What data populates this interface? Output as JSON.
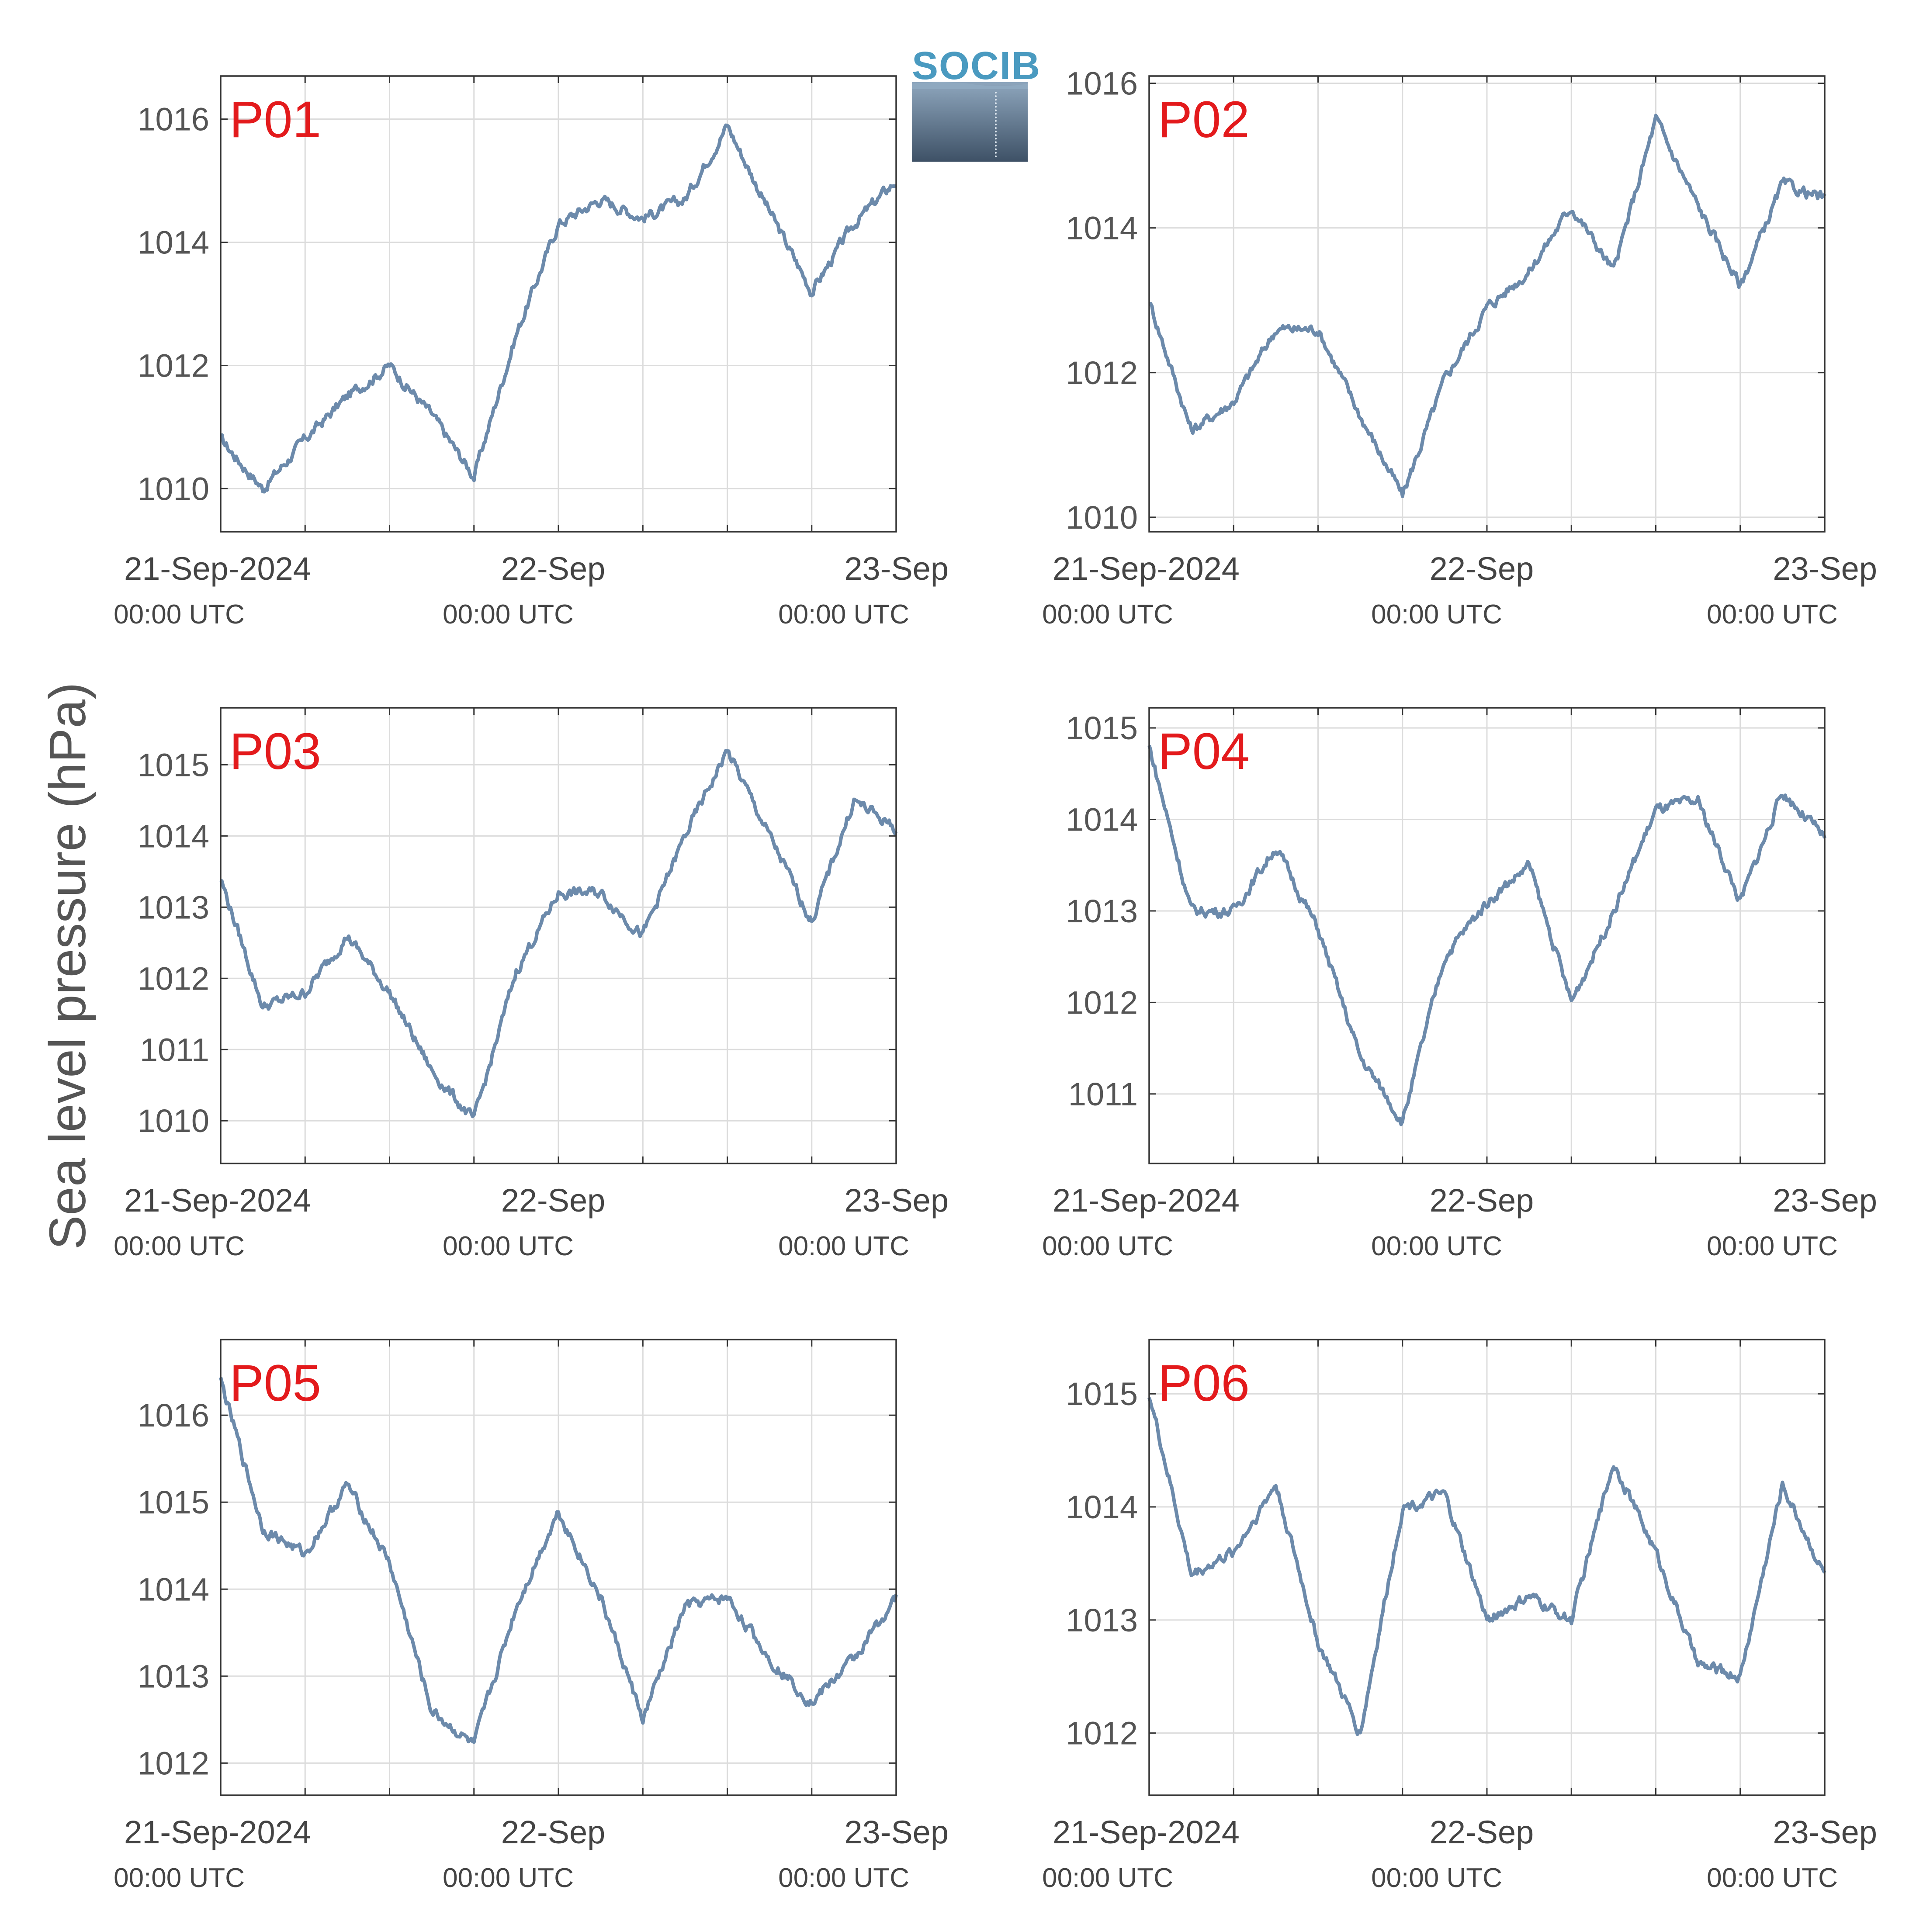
{
  "figure": {
    "ylabel": "Sea level pressure (hPa)",
    "logo_text": "SOCIB",
    "line_color": "#6c8aab",
    "label_color": "#e31a1c"
  },
  "chart_data": [
    {
      "type": "line",
      "panel": "P01",
      "x": [
        "21-Sep-2024 00:00",
        "21-Sep 03:00",
        "21-Sep 06:00",
        "21-Sep 09:00",
        "21-Sep 12:00",
        "21-Sep 15:00",
        "21-Sep 18:00",
        "21-Sep 21:00",
        "22-Sep 00:00",
        "22-Sep 03:00",
        "22-Sep 06:00",
        "22-Sep 09:00",
        "22-Sep 12:00",
        "22-Sep 15:00",
        "22-Sep 18:00",
        "22-Sep 21:00",
        "23-Sep 00:00"
      ],
      "y": [
        1010.8,
        1010.0,
        1010.8,
        1011.5,
        1012.0,
        1011.2,
        1010.2,
        1012.5,
        1014.3,
        1014.7,
        1014.4,
        1014.7,
        1015.9,
        1014.5,
        1013.2,
        1014.3,
        1015.0
      ],
      "ylim": [
        1009.3,
        1016.7
      ],
      "yticks": [
        1010,
        1012,
        1014,
        1016
      ],
      "xtick_labels": [
        "21-Sep-2024",
        "22-Sep",
        "23-Sep"
      ],
      "xtick_sublabels": [
        "00:00 UTC",
        "00:00 UTC",
        "00:00 UTC"
      ]
    },
    {
      "type": "line",
      "panel": "P02",
      "x": [
        "21-Sep-2024 00:00",
        "21-Sep 03:00",
        "21-Sep 06:00",
        "21-Sep 09:00",
        "21-Sep 12:00",
        "21-Sep 15:00",
        "21-Sep 18:00",
        "21-Sep 21:00",
        "22-Sep 00:00",
        "22-Sep 03:00",
        "22-Sep 06:00",
        "22-Sep 09:00",
        "22-Sep 12:00",
        "22-Sep 15:00",
        "22-Sep 18:00",
        "22-Sep 21:00",
        "23-Sep 00:00"
      ],
      "y": [
        1013.0,
        1011.2,
        1011.6,
        1012.6,
        1012.6,
        1011.4,
        1010.3,
        1011.9,
        1012.9,
        1013.4,
        1014.3,
        1013.4,
        1015.5,
        1014.3,
        1013.2,
        1014.6,
        1014.4
      ],
      "ylim": [
        1009.8,
        1016.1
      ],
      "yticks": [
        1010,
        1012,
        1014,
        1016
      ],
      "xtick_labels": [
        "21-Sep-2024",
        "22-Sep",
        "23-Sep"
      ],
      "xtick_sublabels": [
        "00:00 UTC",
        "00:00 UTC",
        "00:00 UTC"
      ]
    },
    {
      "type": "line",
      "panel": "P03",
      "x": [
        "21-Sep-2024 00:00",
        "21-Sep 03:00",
        "21-Sep 06:00",
        "21-Sep 09:00",
        "21-Sep 12:00",
        "21-Sep 15:00",
        "21-Sep 18:00",
        "21-Sep 21:00",
        "22-Sep 00:00",
        "22-Sep 03:00",
        "22-Sep 06:00",
        "22-Sep 09:00",
        "22-Sep 12:00",
        "22-Sep 15:00",
        "22-Sep 18:00",
        "22-Sep 21:00",
        "23-Sep 00:00"
      ],
      "y": [
        1013.4,
        1011.6,
        1011.8,
        1012.6,
        1011.8,
        1010.7,
        1010.0,
        1012.1,
        1013.2,
        1013.2,
        1012.6,
        1014.0,
        1015.2,
        1014.0,
        1012.8,
        1014.5,
        1014.1
      ],
      "ylim": [
        1009.4,
        1015.8
      ],
      "yticks": [
        1010,
        1011,
        1012,
        1013,
        1014,
        1015
      ],
      "xtick_labels": [
        "21-Sep-2024",
        "22-Sep",
        "23-Sep"
      ],
      "xtick_sublabels": [
        "00:00 UTC",
        "00:00 UTC",
        "00:00 UTC"
      ]
    },
    {
      "type": "line",
      "panel": "P04",
      "x": [
        "21-Sep-2024 00:00",
        "21-Sep 03:00",
        "21-Sep 06:00",
        "21-Sep 09:00",
        "21-Sep 12:00",
        "21-Sep 15:00",
        "21-Sep 18:00",
        "21-Sep 21:00",
        "22-Sep 00:00",
        "22-Sep 03:00",
        "22-Sep 06:00",
        "22-Sep 09:00",
        "22-Sep 12:00",
        "22-Sep 15:00",
        "22-Sep 18:00",
        "22-Sep 21:00",
        "23-Sep 00:00"
      ],
      "y": [
        1014.8,
        1013.0,
        1013.0,
        1013.7,
        1012.8,
        1011.4,
        1010.7,
        1012.5,
        1013.1,
        1013.5,
        1012.0,
        1013.0,
        1014.1,
        1014.2,
        1013.1,
        1014.3,
        1013.8
      ],
      "ylim": [
        1010.24,
        1015.22
      ],
      "yticks": [
        1011,
        1012,
        1013,
        1014,
        1015
      ],
      "xtick_labels": [
        "21-Sep-2024",
        "22-Sep",
        "23-Sep"
      ],
      "xtick_sublabels": [
        "00:00 UTC",
        "00:00 UTC",
        "00:00 UTC"
      ]
    },
    {
      "type": "line",
      "panel": "P05",
      "x": [
        "21-Sep-2024 00:00",
        "21-Sep 03:00",
        "21-Sep 06:00",
        "21-Sep 09:00",
        "21-Sep 12:00",
        "21-Sep 15:00",
        "21-Sep 18:00",
        "21-Sep 21:00",
        "22-Sep 00:00",
        "22-Sep 03:00",
        "22-Sep 06:00",
        "22-Sep 09:00",
        "22-Sep 12:00",
        "22-Sep 15:00",
        "22-Sep 18:00",
        "22-Sep 21:00",
        "23-Sep 00:00"
      ],
      "y": [
        1016.4,
        1014.7,
        1014.4,
        1015.2,
        1014.3,
        1012.6,
        1012.2,
        1013.8,
        1014.9,
        1013.9,
        1012.5,
        1013.8,
        1013.9,
        1013.2,
        1012.7,
        1013.2,
        1013.9
      ],
      "ylim": [
        1011.63,
        1016.87
      ],
      "yticks": [
        1012,
        1013,
        1014,
        1015,
        1016
      ],
      "xtick_labels": [
        "21-Sep-2024",
        "22-Sep",
        "23-Sep"
      ],
      "xtick_sublabels": [
        "00:00 UTC",
        "00:00 UTC",
        "00:00 UTC"
      ]
    },
    {
      "type": "line",
      "panel": "P06",
      "x": [
        "21-Sep-2024 00:00",
        "21-Sep 03:00",
        "21-Sep 06:00",
        "21-Sep 09:00",
        "21-Sep 12:00",
        "21-Sep 15:00",
        "21-Sep 18:00",
        "21-Sep 21:00",
        "22-Sep 00:00",
        "22-Sep 03:00",
        "22-Sep 06:00",
        "22-Sep 09:00",
        "22-Sep 12:00",
        "22-Sep 15:00",
        "22-Sep 18:00",
        "22-Sep 21:00",
        "23-Sep 00:00"
      ],
      "y": [
        1015.0,
        1013.4,
        1013.6,
        1014.2,
        1012.8,
        1012.0,
        1014.0,
        1014.1,
        1013.0,
        1013.2,
        1013.0,
        1014.4,
        1013.6,
        1012.6,
        1012.5,
        1014.2,
        1013.4
      ],
      "ylim": [
        1011.45,
        1015.48
      ],
      "yticks": [
        1012,
        1013,
        1014,
        1015
      ],
      "xtick_labels": [
        "21-Sep-2024",
        "22-Sep",
        "23-Sep"
      ],
      "xtick_sublabels": [
        "00:00 UTC",
        "00:00 UTC",
        "00:00 UTC"
      ]
    }
  ]
}
